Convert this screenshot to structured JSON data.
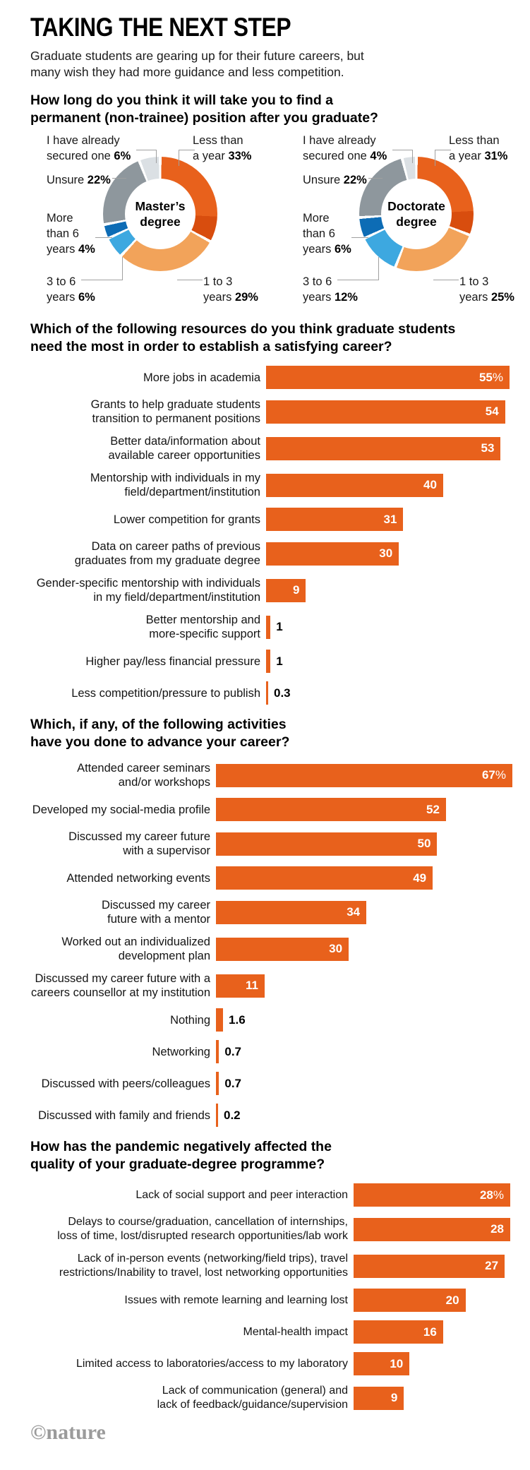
{
  "header": {
    "title": "TAKING THE NEXT STEP",
    "subtitle_lines": [
      "Graduate students are gearing up for their future careers, but",
      "many wish they had more guidance and less competition."
    ]
  },
  "colors": {
    "bar_orange": "#e8611c",
    "donut_orange": "#e8611c",
    "donut_orange_dark": "#d84d0e",
    "donut_light_orange": "#f2a35a",
    "donut_light_blue": "#3da8e0",
    "donut_dark_blue": "#0d6cb5",
    "donut_gray": "#8e979d",
    "donut_light_gray": "#dbe0e4",
    "connector_gray": "#a0a0a0",
    "credit_gray": "#9b9b9b"
  },
  "chart_data": [
    {
      "type": "donut-pair",
      "question_lines": [
        "How long do you think it will take you to find a",
        "permanent (non-trainee) position after you graduate?"
      ],
      "donuts": [
        {
          "center_lines": [
            "Master’s",
            "degree"
          ],
          "slices": [
            {
              "key": "less",
              "label": "Less than a year",
              "value": 33,
              "display": "33%",
              "color": "#e8611c",
              "tail_color": "#d84d0e",
              "callout_lines": [
                "Less than",
                "a year"
              ]
            },
            {
              "key": "one",
              "label": "1 to 3 years",
              "value": 29,
              "display": "29%",
              "color": "#f2a35a",
              "callout_lines": [
                "1 to 3",
                "years"
              ]
            },
            {
              "key": "three",
              "label": "3 to 6 years",
              "value": 6,
              "display": "6%",
              "color": "#3da8e0",
              "callout_lines": [
                "3 to 6",
                "years"
              ]
            },
            {
              "key": "more",
              "label": "More than 6 years",
              "value": 4,
              "display": "4%",
              "color": "#0d6cb5",
              "callout_lines": [
                "More",
                "than 6",
                "years"
              ]
            },
            {
              "key": "unsure",
              "label": "Unsure",
              "value": 22,
              "display": "22%",
              "color": "#8e979d",
              "callout_lines": [
                "Unsure"
              ]
            },
            {
              "key": "secured",
              "label": "I have already secured one",
              "value": 6,
              "display": "6%",
              "color": "#dbe0e4",
              "callout_lines": [
                "I have already",
                "secured one"
              ]
            }
          ]
        },
        {
          "center_lines": [
            "Doctorate",
            "degree"
          ],
          "slices": [
            {
              "key": "less",
              "label": "Less than a year",
              "value": 31,
              "display": "31%",
              "color": "#e8611c",
              "tail_color": "#d84d0e",
              "callout_lines": [
                "Less than",
                "a year"
              ]
            },
            {
              "key": "one",
              "label": "1 to 3 years",
              "value": 25,
              "display": "25%",
              "color": "#f2a35a",
              "callout_lines": [
                "1 to 3",
                "years"
              ]
            },
            {
              "key": "three",
              "label": "3 to 6 years",
              "value": 12,
              "display": "12%",
              "color": "#3da8e0",
              "callout_lines": [
                "3 to 6",
                "years"
              ]
            },
            {
              "key": "more",
              "label": "More than 6 years",
              "value": 6,
              "display": "6%",
              "color": "#0d6cb5",
              "callout_lines": [
                "More",
                "than 6",
                "years"
              ]
            },
            {
              "key": "unsure",
              "label": "Unsure",
              "value": 22,
              "display": "22%",
              "color": "#8e979d",
              "callout_lines": [
                "Unsure"
              ]
            },
            {
              "key": "secured",
              "label": "I have already secured one",
              "value": 4,
              "display": "4%",
              "color": "#dbe0e4",
              "callout_lines": [
                "I have already",
                "secured one"
              ]
            }
          ]
        }
      ]
    },
    {
      "type": "bar",
      "question_lines": [
        "Which of the following resources do you think graduate students",
        "need the most in order to establish a satisfying career?"
      ],
      "max": 55,
      "rows": [
        {
          "label_lines": [
            "More jobs in academia"
          ],
          "value": 55,
          "display": "55",
          "suffix": "%",
          "inside": true
        },
        {
          "label_lines": [
            "Grants to help graduate students",
            "transition to permanent positions"
          ],
          "value": 54,
          "display": "54",
          "suffix": "",
          "inside": true
        },
        {
          "label_lines": [
            "Better data/information about",
            "available career opportunities"
          ],
          "value": 53,
          "display": "53",
          "suffix": "",
          "inside": true
        },
        {
          "label_lines": [
            "Mentorship with individuals in my",
            "field/department/institution"
          ],
          "value": 40,
          "display": "40",
          "suffix": "",
          "inside": true
        },
        {
          "label_lines": [
            "Lower competition for grants"
          ],
          "value": 31,
          "display": "31",
          "suffix": "",
          "inside": true
        },
        {
          "label_lines": [
            "Data on career paths of previous",
            "graduates from my graduate degree"
          ],
          "value": 30,
          "display": "30",
          "suffix": "",
          "inside": true
        },
        {
          "label_lines": [
            "Gender-specific mentorship with individuals",
            "in my field/department/institution"
          ],
          "value": 9,
          "display": "9",
          "suffix": "",
          "inside": true
        },
        {
          "label_lines": [
            "Better mentorship and",
            "more-specific support"
          ],
          "value": 1,
          "display": "1",
          "suffix": "",
          "inside": false
        },
        {
          "label_lines": [
            "Higher pay/less financial pressure"
          ],
          "value": 1,
          "display": "1",
          "suffix": "",
          "inside": false
        },
        {
          "label_lines": [
            "Less competition/pressure to publish"
          ],
          "value": 0.3,
          "display": "0.3",
          "suffix": "",
          "inside": false
        }
      ]
    },
    {
      "type": "bar",
      "question_lines": [
        "Which, if any, of the following activities",
        "have you done to advance your career?"
      ],
      "max": 67,
      "rows": [
        {
          "label_lines": [
            "Attended career seminars",
            "and/or workshops"
          ],
          "value": 67,
          "display": "67",
          "suffix": "%",
          "inside": true
        },
        {
          "label_lines": [
            "Developed my social-media profile"
          ],
          "value": 52,
          "display": "52",
          "suffix": "",
          "inside": true
        },
        {
          "label_lines": [
            "Discussed my career future",
            "with a supervisor"
          ],
          "value": 50,
          "display": "50",
          "suffix": "",
          "inside": true
        },
        {
          "label_lines": [
            "Attended networking events"
          ],
          "value": 49,
          "display": "49",
          "suffix": "",
          "inside": true
        },
        {
          "label_lines": [
            "Discussed my career",
            "future with a mentor"
          ],
          "value": 34,
          "display": "34",
          "suffix": "",
          "inside": true
        },
        {
          "label_lines": [
            "Worked out an individualized",
            "development plan"
          ],
          "value": 30,
          "display": "30",
          "suffix": "",
          "inside": true
        },
        {
          "label_lines": [
            "Discussed my career future with a",
            "careers counsellor at my institution"
          ],
          "value": 11,
          "display": "11",
          "suffix": "",
          "inside": true
        },
        {
          "label_lines": [
            "Nothing"
          ],
          "value": 1.6,
          "display": "1.6",
          "suffix": "",
          "inside": false
        },
        {
          "label_lines": [
            "Networking"
          ],
          "value": 0.7,
          "display": "0.7",
          "suffix": "",
          "inside": false
        },
        {
          "label_lines": [
            "Discussed with peers/colleagues"
          ],
          "value": 0.7,
          "display": "0.7",
          "suffix": "",
          "inside": false
        },
        {
          "label_lines": [
            "Discussed with family and friends"
          ],
          "value": 0.2,
          "display": "0.2",
          "suffix": "",
          "inside": false
        }
      ]
    },
    {
      "type": "bar",
      "question_lines": [
        "How has the pandemic negatively affected the",
        "quality of your graduate-degree programme?"
      ],
      "max": 28,
      "rows": [
        {
          "label_lines": [
            "Lack of social support and peer interaction"
          ],
          "value": 28,
          "display": "28",
          "suffix": "%",
          "inside": true
        },
        {
          "label_lines": [
            "Delays to course/graduation, cancellation of internships,",
            "loss of time, lost/disrupted research opportunities/lab work"
          ],
          "value": 28,
          "display": "28",
          "suffix": "",
          "inside": true
        },
        {
          "label_lines": [
            "Lack of in-person events (networking/field trips), travel",
            "restrictions/Inability to travel, lost networking opportunities"
          ],
          "value": 27,
          "display": "27",
          "suffix": "",
          "inside": true
        },
        {
          "label_lines": [
            "Issues with remote learning and learning lost"
          ],
          "value": 20,
          "display": "20",
          "suffix": "",
          "inside": true
        },
        {
          "label_lines": [
            "Mental-health impact"
          ],
          "value": 16,
          "display": "16",
          "suffix": "",
          "inside": true
        },
        {
          "label_lines": [
            "Limited access to laboratories/access to my laboratory"
          ],
          "value": 10,
          "display": "10",
          "suffix": "",
          "inside": true
        },
        {
          "label_lines": [
            "Lack of communication (general) and",
            "lack of feedback/guidance/supervision"
          ],
          "value": 9,
          "display": "9",
          "suffix": "",
          "inside": true
        }
      ]
    }
  ],
  "footer": {
    "credit": "©nature"
  }
}
